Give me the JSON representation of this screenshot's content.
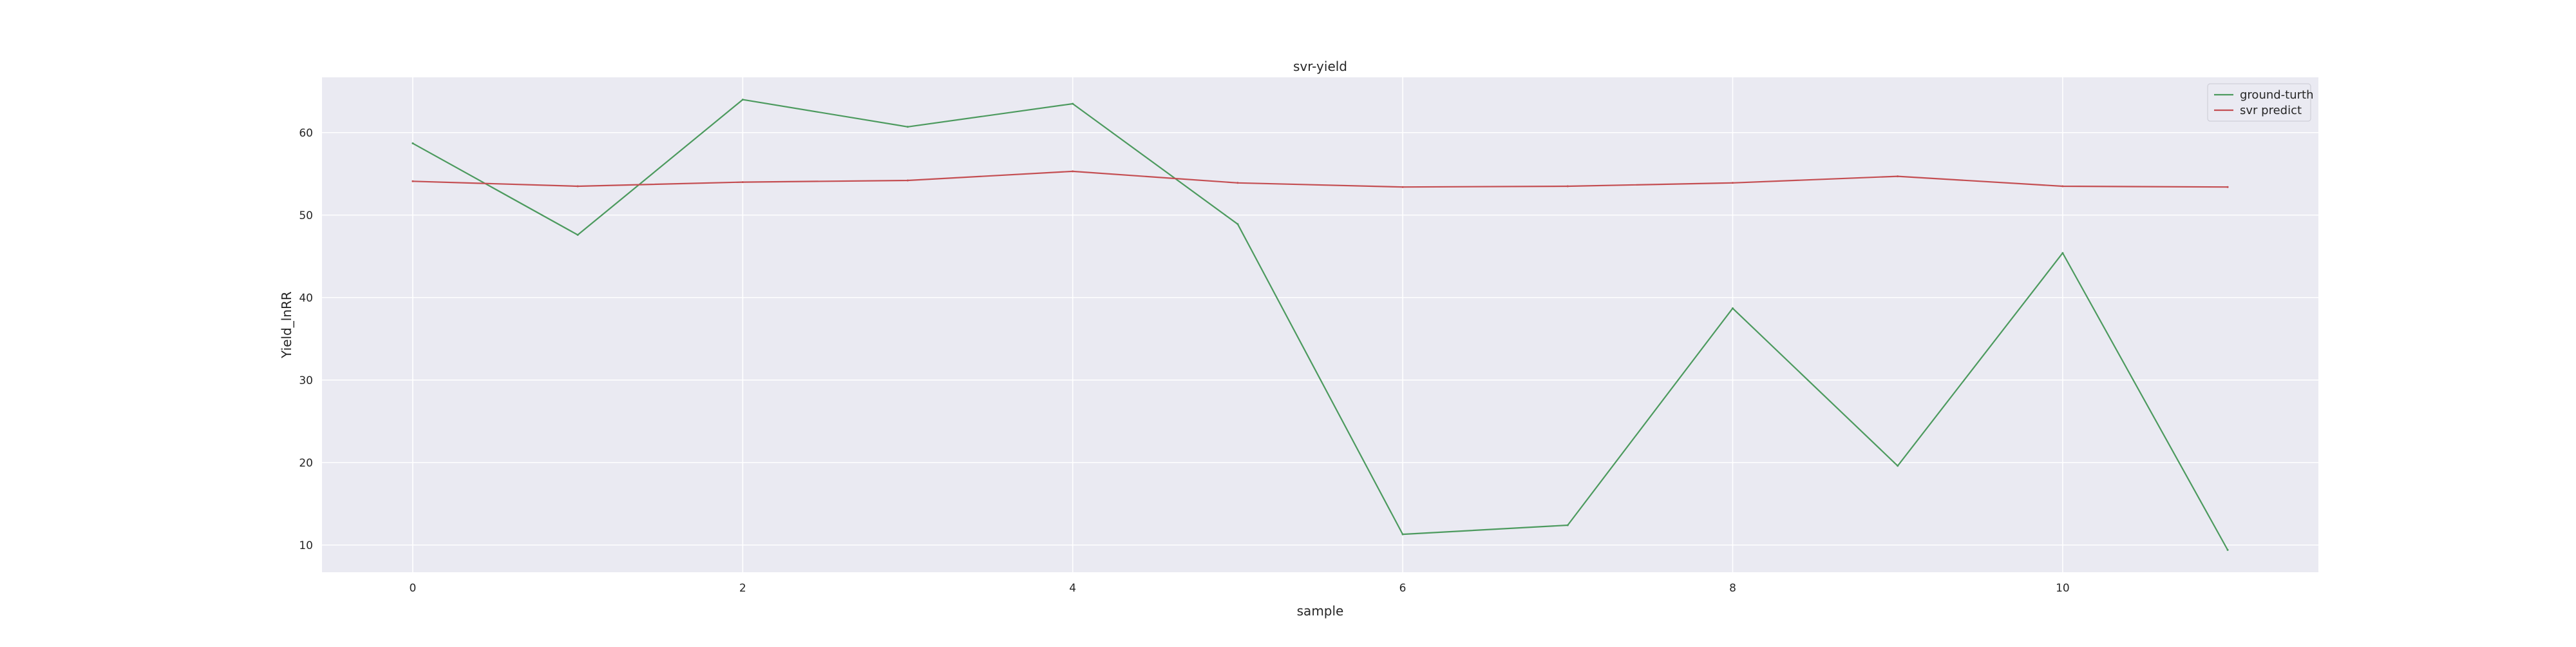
{
  "chart_data": {
    "type": "line",
    "title": "svr-yield",
    "xlabel": "sample",
    "ylabel": "Yield_lnRR",
    "x": [
      0,
      1,
      2,
      3,
      4,
      5,
      6,
      7,
      8,
      9,
      10,
      11
    ],
    "series": [
      {
        "name": "ground-turth",
        "color": "#4c9a5e",
        "values": [
          58.7,
          47.6,
          64.0,
          60.7,
          63.5,
          48.9,
          11.3,
          12.4,
          38.7,
          19.6,
          45.4,
          9.4
        ]
      },
      {
        "name": "svr predict",
        "color": "#c44e52",
        "values": [
          54.1,
          53.5,
          54.0,
          54.2,
          55.3,
          53.9,
          53.4,
          53.5,
          53.9,
          54.7,
          53.5,
          53.4
        ]
      }
    ],
    "xlim": [
      -0.55,
      11.55
    ],
    "ylim": [
      6.7,
      66.7
    ],
    "xticks": [
      0,
      2,
      4,
      6,
      8,
      10
    ],
    "yticks": [
      10,
      20,
      30,
      40,
      50,
      60
    ],
    "xtick_labels": [
      "0",
      "2",
      "4",
      "6",
      "8",
      "10"
    ],
    "ytick_labels": [
      "10",
      "20",
      "30",
      "40",
      "50",
      "60"
    ],
    "grid": true,
    "background": "#eaeaf2",
    "legend_position": "top-right"
  }
}
